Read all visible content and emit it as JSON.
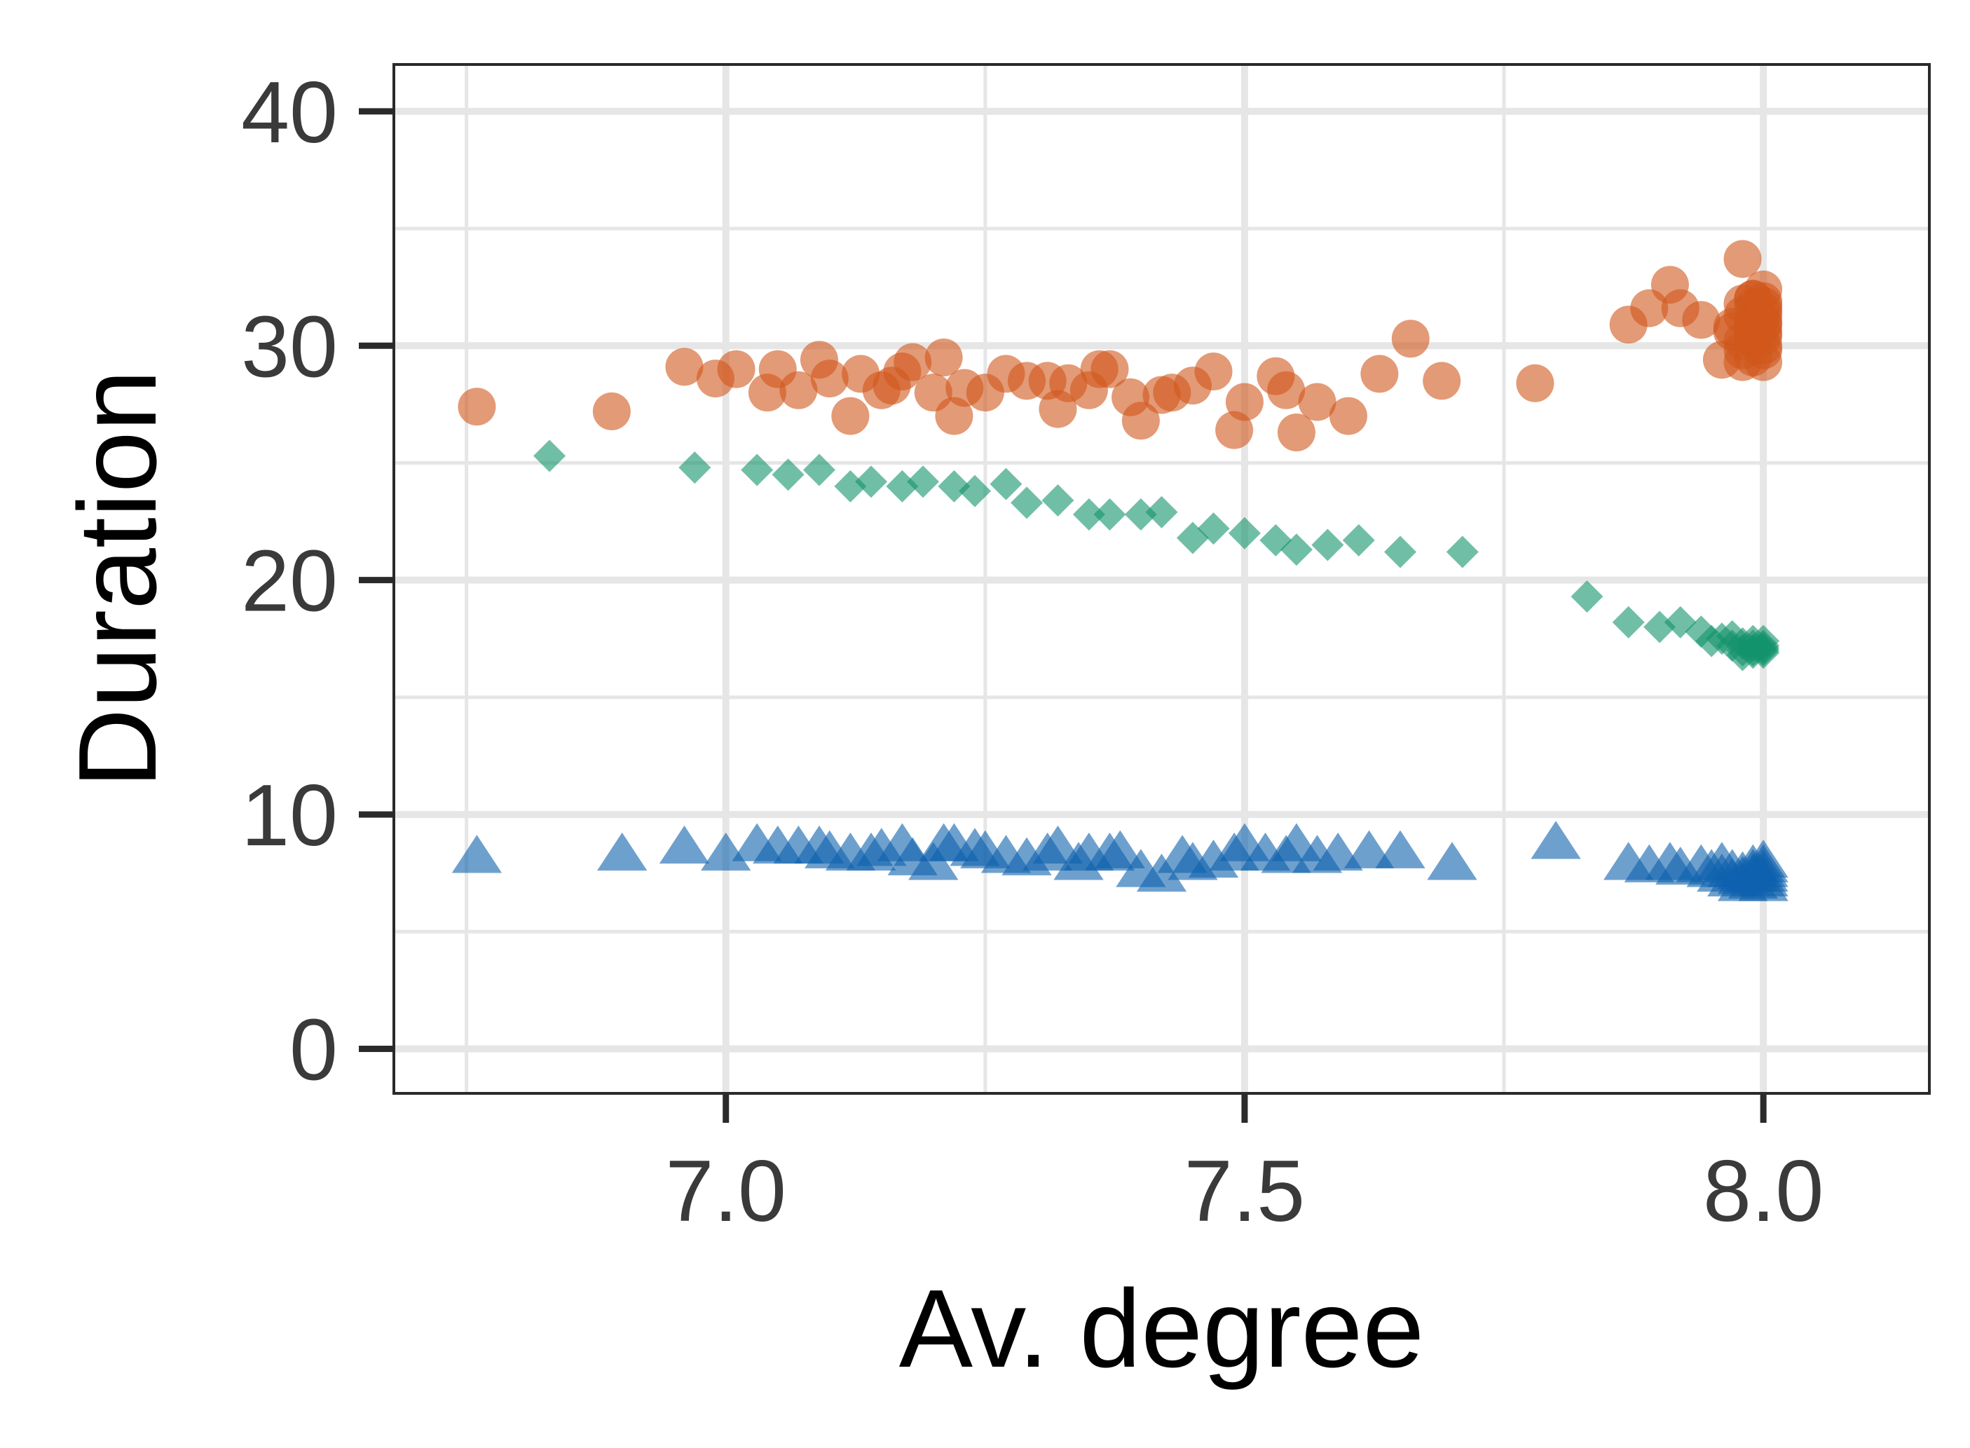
{
  "chart_data": {
    "type": "scatter",
    "title": "",
    "xlabel": "Av. degree",
    "ylabel": "Duration",
    "xlim": [
      6.68,
      8.16
    ],
    "ylim": [
      -1.9,
      42
    ],
    "x_ticks": [
      {
        "value": 7.0,
        "label": "7.0"
      },
      {
        "value": 7.5,
        "label": "7.5"
      },
      {
        "value": 8.0,
        "label": "8.0"
      }
    ],
    "y_ticks": [
      {
        "value": 0,
        "label": "0"
      },
      {
        "value": 10,
        "label": "10"
      },
      {
        "value": 20,
        "label": "20"
      },
      {
        "value": 30,
        "label": "30"
      },
      {
        "value": 40,
        "label": "40"
      }
    ],
    "x_minor_gridlines": [
      6.75,
      7.25,
      7.75
    ],
    "y_minor_gridlines": [
      5,
      15,
      25,
      35
    ],
    "grid": true,
    "legend": "none",
    "series": [
      {
        "marker": "circle",
        "color": "#d0561a",
        "points": [
          [
            6.76,
            27.4
          ],
          [
            6.89,
            27.2
          ],
          [
            6.96,
            29.1
          ],
          [
            6.99,
            28.6
          ],
          [
            7.01,
            29.0
          ],
          [
            7.04,
            28.0
          ],
          [
            7.05,
            29.0
          ],
          [
            7.07,
            28.1
          ],
          [
            7.09,
            29.4
          ],
          [
            7.1,
            28.6
          ],
          [
            7.12,
            27.0
          ],
          [
            7.13,
            28.8
          ],
          [
            7.15,
            28.1
          ],
          [
            7.16,
            28.3
          ],
          [
            7.17,
            28.9
          ],
          [
            7.18,
            29.3
          ],
          [
            7.2,
            28.0
          ],
          [
            7.21,
            29.5
          ],
          [
            7.22,
            27.0
          ],
          [
            7.23,
            28.2
          ],
          [
            7.25,
            28.0
          ],
          [
            7.27,
            28.8
          ],
          [
            7.29,
            28.5
          ],
          [
            7.31,
            28.5
          ],
          [
            7.32,
            27.3
          ],
          [
            7.33,
            28.4
          ],
          [
            7.35,
            28.1
          ],
          [
            7.36,
            29.0
          ],
          [
            7.37,
            29.0
          ],
          [
            7.39,
            27.8
          ],
          [
            7.4,
            26.8
          ],
          [
            7.42,
            27.9
          ],
          [
            7.43,
            28.0
          ],
          [
            7.45,
            28.3
          ],
          [
            7.47,
            28.9
          ],
          [
            7.49,
            26.4
          ],
          [
            7.5,
            27.6
          ],
          [
            7.53,
            28.7
          ],
          [
            7.54,
            28.1
          ],
          [
            7.55,
            26.3
          ],
          [
            7.57,
            27.6
          ],
          [
            7.6,
            27.0
          ],
          [
            7.63,
            28.8
          ],
          [
            7.66,
            30.3
          ],
          [
            7.69,
            28.5
          ],
          [
            7.78,
            28.4
          ],
          [
            7.87,
            30.9
          ],
          [
            7.89,
            31.6
          ],
          [
            7.91,
            32.6
          ],
          [
            7.92,
            31.6
          ],
          [
            7.94,
            31.1
          ],
          [
            7.96,
            29.4
          ],
          [
            7.97,
            30.6
          ],
          [
            7.98,
            33.7
          ],
          [
            7.99,
            32.0
          ],
          [
            7.99,
            29.5
          ],
          [
            8.0,
            31.5
          ],
          [
            8.0,
            30.6
          ],
          [
            8.0,
            29.8
          ],
          [
            8.0,
            31.0
          ],
          [
            7.98,
            30.2
          ],
          [
            7.98,
            31.8
          ],
          [
            7.99,
            30.9
          ],
          [
            7.99,
            31.6
          ],
          [
            7.99,
            30.3
          ],
          [
            8.0,
            32.4
          ],
          [
            8.0,
            29.3
          ],
          [
            8.0,
            30.0
          ],
          [
            8.0,
            31.9
          ],
          [
            7.97,
            30.8
          ],
          [
            7.98,
            29.8
          ],
          [
            7.98,
            31.3
          ],
          [
            7.99,
            31.0
          ],
          [
            7.99,
            32.0
          ],
          [
            7.99,
            30.5
          ],
          [
            8.0,
            30.9
          ],
          [
            8.0,
            31.3
          ],
          [
            8.0,
            30.4
          ],
          [
            7.98,
            29.3
          ],
          [
            8.0,
            31.7
          ]
        ]
      },
      {
        "marker": "diamond",
        "color": "#12936a",
        "points": [
          [
            6.83,
            25.3
          ],
          [
            6.97,
            24.8
          ],
          [
            7.03,
            24.7
          ],
          [
            7.06,
            24.5
          ],
          [
            7.09,
            24.7
          ],
          [
            7.12,
            24.0
          ],
          [
            7.14,
            24.2
          ],
          [
            7.17,
            24.0
          ],
          [
            7.19,
            24.2
          ],
          [
            7.22,
            24.0
          ],
          [
            7.24,
            23.8
          ],
          [
            7.27,
            24.1
          ],
          [
            7.29,
            23.3
          ],
          [
            7.32,
            23.4
          ],
          [
            7.35,
            22.8
          ],
          [
            7.37,
            22.8
          ],
          [
            7.4,
            22.8
          ],
          [
            7.42,
            22.9
          ],
          [
            7.45,
            21.8
          ],
          [
            7.47,
            22.2
          ],
          [
            7.5,
            22.0
          ],
          [
            7.53,
            21.7
          ],
          [
            7.55,
            21.3
          ],
          [
            7.58,
            21.5
          ],
          [
            7.61,
            21.7
          ],
          [
            7.65,
            21.2
          ],
          [
            7.71,
            21.2
          ],
          [
            7.83,
            19.3
          ],
          [
            7.87,
            18.2
          ],
          [
            7.9,
            18.0
          ],
          [
            7.92,
            18.2
          ],
          [
            7.94,
            17.8
          ],
          [
            7.95,
            17.4
          ],
          [
            7.96,
            17.5
          ],
          [
            7.97,
            17.2
          ],
          [
            7.97,
            17.6
          ],
          [
            7.98,
            16.8
          ],
          [
            7.98,
            17.3
          ],
          [
            7.99,
            17.0
          ],
          [
            7.99,
            17.4
          ],
          [
            7.99,
            16.9
          ],
          [
            8.0,
            17.2
          ],
          [
            8.0,
            16.9
          ],
          [
            8.0,
            17.4
          ],
          [
            8.0,
            17.0
          ],
          [
            8.0,
            17.1
          ],
          [
            7.98,
            17.0
          ],
          [
            7.99,
            17.2
          ]
        ]
      },
      {
        "marker": "triangle",
        "color": "#0e60ad",
        "points": [
          [
            6.76,
            8.2
          ],
          [
            6.9,
            8.3
          ],
          [
            6.96,
            8.6
          ],
          [
            7.0,
            8.3
          ],
          [
            7.03,
            8.7
          ],
          [
            7.05,
            8.6
          ],
          [
            7.07,
            8.6
          ],
          [
            7.09,
            8.6
          ],
          [
            7.1,
            8.4
          ],
          [
            7.12,
            8.3
          ],
          [
            7.14,
            8.3
          ],
          [
            7.15,
            8.5
          ],
          [
            7.17,
            8.7
          ],
          [
            7.18,
            8.1
          ],
          [
            7.2,
            7.9
          ],
          [
            7.21,
            8.7
          ],
          [
            7.22,
            8.7
          ],
          [
            7.24,
            8.5
          ],
          [
            7.25,
            8.4
          ],
          [
            7.27,
            8.2
          ],
          [
            7.29,
            8.1
          ],
          [
            7.31,
            8.3
          ],
          [
            7.32,
            8.6
          ],
          [
            7.34,
            7.9
          ],
          [
            7.35,
            8.3
          ],
          [
            7.37,
            8.3
          ],
          [
            7.38,
            8.4
          ],
          [
            7.4,
            7.6
          ],
          [
            7.42,
            7.4
          ],
          [
            7.44,
            8.2
          ],
          [
            7.45,
            7.9
          ],
          [
            7.47,
            8.0
          ],
          [
            7.49,
            8.3
          ],
          [
            7.5,
            8.7
          ],
          [
            7.52,
            8.3
          ],
          [
            7.54,
            8.2
          ],
          [
            7.55,
            8.7
          ],
          [
            7.57,
            8.2
          ],
          [
            7.59,
            8.3
          ],
          [
            7.62,
            8.4
          ],
          [
            7.65,
            8.4
          ],
          [
            7.7,
            7.9
          ],
          [
            7.8,
            8.8
          ],
          [
            7.87,
            7.9
          ],
          [
            7.89,
            7.8
          ],
          [
            7.91,
            7.9
          ],
          [
            7.92,
            7.7
          ],
          [
            7.94,
            7.8
          ],
          [
            7.95,
            7.6
          ],
          [
            7.96,
            7.4
          ],
          [
            7.96,
            7.9
          ],
          [
            7.97,
            7.2
          ],
          [
            7.97,
            7.6
          ],
          [
            7.98,
            7.0
          ],
          [
            7.98,
            7.5
          ],
          [
            7.99,
            7.8
          ],
          [
            7.99,
            7.1
          ],
          [
            7.99,
            7.4
          ],
          [
            8.0,
            8.0
          ],
          [
            8.0,
            7.4
          ],
          [
            8.0,
            7.0
          ],
          [
            8.0,
            7.6
          ],
          [
            8.0,
            7.2
          ],
          [
            7.98,
            7.3
          ],
          [
            7.99,
            7.6
          ],
          [
            8.0,
            7.8
          ]
        ]
      }
    ]
  }
}
